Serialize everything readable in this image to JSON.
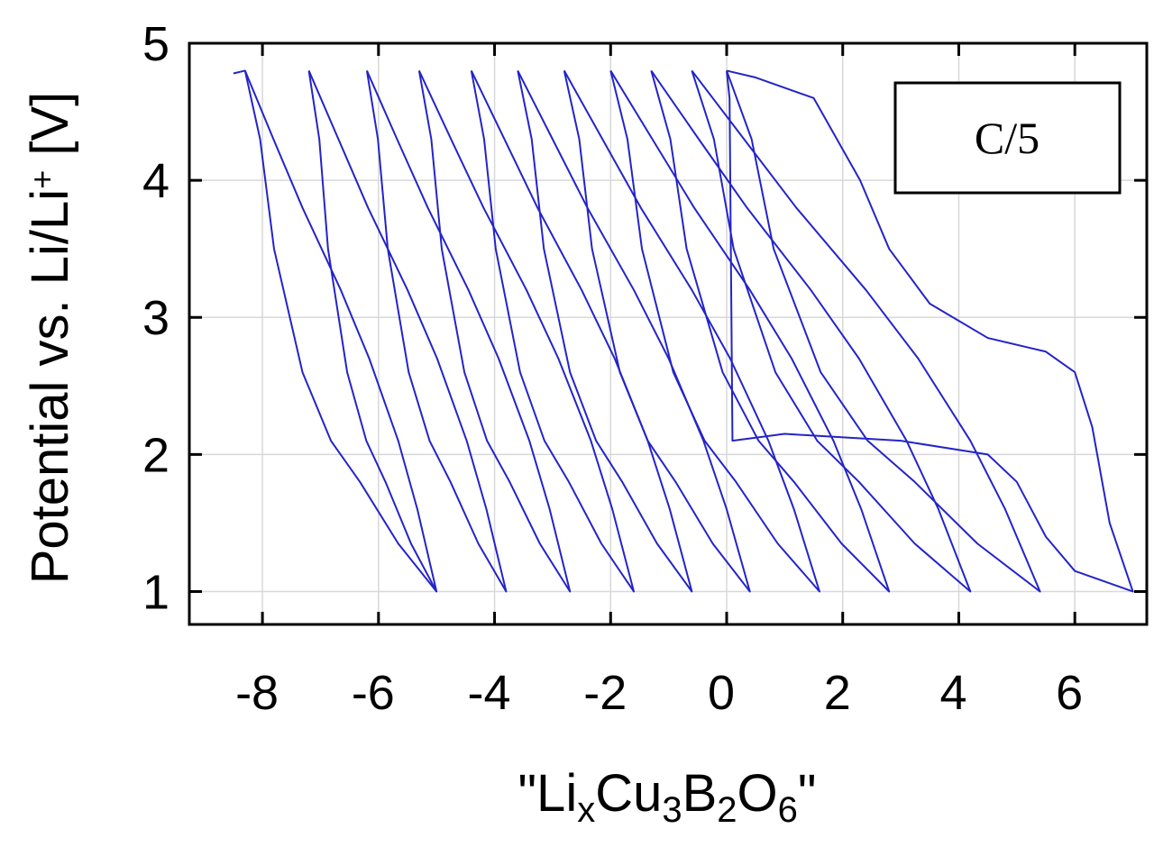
{
  "chart_data": {
    "type": "line",
    "ylabel": [
      {
        "text": "Potential vs. Li/Li"
      },
      {
        "text": "+",
        "sup": true
      },
      {
        "text": " [V]"
      }
    ],
    "xlabel": [
      {
        "text": "\"Li"
      },
      {
        "text": "x",
        "sub": true
      },
      {
        "text": "Cu"
      },
      {
        "text": "3",
        "sub": true
      },
      {
        "text": "B"
      },
      {
        "text": "2",
        "sub": true
      },
      {
        "text": "O"
      },
      {
        "text": "6",
        "sub": true
      },
      {
        "text": "\""
      }
    ],
    "annotation": "C/5",
    "xlim": [
      -9.26,
      7.24
    ],
    "ylim": [
      0.76,
      5
    ],
    "xticks": [
      -8,
      -6,
      -4,
      -2,
      0,
      2,
      4,
      6
    ],
    "yticks": [
      1,
      2,
      3,
      4,
      5
    ],
    "grid": true,
    "series": [
      {
        "color": "#2424c8",
        "x": [
          0,
          0.05,
          0.1,
          1,
          3,
          4.5,
          5,
          5.5,
          6,
          7,
          6.6,
          6.3,
          6.0,
          5.5,
          4.5,
          3.5,
          2.8,
          2.3,
          1.5,
          0.5,
          0
        ],
        "values": [
          4.8,
          4.6,
          2.1,
          2.15,
          2.1,
          2.0,
          1.8,
          1.4,
          1.15,
          1.0,
          1.5,
          2.2,
          2.6,
          2.75,
          2.85,
          3.1,
          3.5,
          4.0,
          4.6,
          4.75,
          4.8
        ]
      },
      {
        "color": "#2424c8",
        "x": [
          0,
          0.43,
          0.81,
          1.62,
          2.43,
          3.24,
          4.32,
          5.4,
          4.8,
          4.2,
          3.3,
          2.4,
          1.2,
          0.3,
          -0.6
        ],
        "values": [
          4.8,
          4.3,
          3.5,
          2.6,
          2.1,
          1.8,
          1.35,
          1.0,
          1.6,
          2.1,
          2.7,
          3.2,
          3.8,
          4.3,
          4.8
        ]
      },
      {
        "color": "#2424c8",
        "x": [
          -0.6,
          -0.22,
          0.12,
          0.84,
          1.56,
          2.28,
          3.24,
          4.2,
          3.65,
          3.1,
          2.28,
          1.45,
          0.35,
          -0.48,
          -1.3
        ],
        "values": [
          4.8,
          4.3,
          3.5,
          2.6,
          2.1,
          1.8,
          1.35,
          1.0,
          1.6,
          2.1,
          2.7,
          3.2,
          3.8,
          4.3,
          4.8
        ]
      },
      {
        "color": "#2424c8",
        "x": [
          -1.3,
          -0.97,
          -0.69,
          -0.07,
          0.55,
          1.16,
          1.98,
          2.8,
          2.32,
          1.84,
          1.12,
          0.4,
          -0.56,
          -1.28,
          -2.0
        ],
        "values": [
          4.8,
          4.3,
          3.5,
          2.6,
          2.1,
          1.8,
          1.35,
          1.0,
          1.6,
          2.1,
          2.7,
          3.2,
          3.8,
          4.3,
          4.8
        ]
      },
      {
        "color": "#2424c8",
        "x": [
          -2,
          -1.71,
          -1.46,
          -0.92,
          -0.38,
          0.16,
          0.88,
          1.6,
          1.16,
          0.72,
          0.06,
          -0.6,
          -1.48,
          -2.14,
          -2.8
        ],
        "values": [
          4.8,
          4.3,
          3.5,
          2.6,
          2.1,
          1.8,
          1.35,
          1.0,
          1.6,
          2.1,
          2.7,
          3.2,
          3.8,
          4.3,
          4.8
        ]
      },
      {
        "color": "#2424c8",
        "x": [
          -2.8,
          -2.54,
          -2.32,
          -1.84,
          -1.36,
          -0.88,
          -0.24,
          0.4,
          0,
          -0.4,
          -1.0,
          -1.6,
          -2.4,
          -3.0,
          -3.6
        ],
        "values": [
          4.8,
          4.3,
          3.5,
          2.6,
          2.1,
          1.8,
          1.35,
          1.0,
          1.6,
          2.1,
          2.7,
          3.2,
          3.8,
          4.3,
          4.8
        ]
      },
      {
        "color": "#2424c8",
        "x": [
          -3.6,
          -3.36,
          -3.15,
          -2.7,
          -2.25,
          -1.8,
          -1.2,
          -0.6,
          -0.98,
          -1.36,
          -1.93,
          -2.5,
          -3.26,
          -3.83,
          -4.4
        ],
        "values": [
          4.8,
          4.3,
          3.5,
          2.6,
          2.1,
          1.8,
          1.35,
          1.0,
          1.6,
          2.1,
          2.7,
          3.2,
          3.8,
          4.3,
          4.8
        ]
      },
      {
        "color": "#2424c8",
        "x": [
          -4.4,
          -4.18,
          -3.98,
          -3.56,
          -3.14,
          -2.72,
          -2.16,
          -1.6,
          -1.97,
          -2.34,
          -2.9,
          -3.45,
          -4.19,
          -4.75,
          -5.3
        ],
        "values": [
          4.8,
          4.3,
          3.5,
          2.6,
          2.1,
          1.8,
          1.35,
          1.0,
          1.6,
          2.1,
          2.7,
          3.2,
          3.8,
          4.3,
          4.8
        ]
      },
      {
        "color": "#2424c8",
        "x": [
          -5.3,
          -5.09,
          -4.91,
          -4.52,
          -4.13,
          -3.74,
          -3.22,
          -2.7,
          -3.05,
          -3.4,
          -3.93,
          -4.45,
          -5.15,
          -5.68,
          -6.2
        ],
        "values": [
          4.8,
          4.3,
          3.5,
          2.6,
          2.1,
          1.8,
          1.35,
          1.0,
          1.6,
          2.1,
          2.7,
          3.2,
          3.8,
          4.3,
          4.8
        ]
      },
      {
        "color": "#2424c8",
        "x": [
          -6.2,
          -6.01,
          -5.84,
          -5.48,
          -5.12,
          -4.76,
          -4.28,
          -3.8,
          -4.14,
          -4.48,
          -4.99,
          -5.5,
          -6.18,
          -6.69,
          -7.2
        ],
        "values": [
          4.8,
          4.3,
          3.5,
          2.6,
          2.1,
          1.8,
          1.35,
          1.0,
          1.6,
          2.1,
          2.7,
          3.2,
          3.8,
          4.3,
          4.8
        ]
      },
      {
        "color": "#2424c8",
        "x": [
          -7.2,
          -7.02,
          -6.87,
          -6.54,
          -6.21,
          -5.88,
          -5.44,
          -5.0,
          -5.33,
          -5.66,
          -6.16,
          -6.65,
          -7.31,
          -7.81,
          -8.3
        ],
        "values": [
          4.8,
          4.3,
          3.5,
          2.6,
          2.1,
          1.8,
          1.35,
          1.0,
          1.6,
          2.1,
          2.7,
          3.2,
          3.8,
          4.3,
          4.8
        ]
      },
      {
        "color": "#2424c8",
        "x": [
          -8.5,
          -8.3,
          -8.04,
          -7.8,
          -7.31,
          -6.82,
          -6.32,
          -5.66,
          -5.0
        ],
        "values": [
          4.78,
          4.8,
          4.3,
          3.5,
          2.6,
          2.1,
          1.8,
          1.35,
          1.0
        ]
      }
    ]
  }
}
